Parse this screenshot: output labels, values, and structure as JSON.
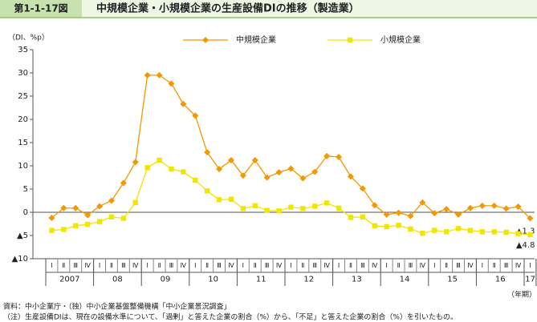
{
  "chart_data": {
    "type": "line",
    "figure_number": "第1-1-17図",
    "title": "中規模企業・小規模企業の生産設備DIの推移（製造業）",
    "y_axis_label": "（DI、%p）",
    "x_axis_label": "（年期）",
    "categories": [
      "Ⅰ",
      "Ⅱ",
      "Ⅲ",
      "Ⅳ",
      "Ⅰ",
      "Ⅱ",
      "Ⅲ",
      "Ⅳ",
      "Ⅰ",
      "Ⅱ",
      "Ⅲ",
      "Ⅳ",
      "Ⅰ",
      "Ⅱ",
      "Ⅲ",
      "Ⅳ",
      "Ⅰ",
      "Ⅱ",
      "Ⅲ",
      "Ⅳ",
      "Ⅰ",
      "Ⅱ",
      "Ⅲ",
      "Ⅳ",
      "Ⅰ",
      "Ⅱ",
      "Ⅲ",
      "Ⅳ",
      "Ⅰ",
      "Ⅱ",
      "Ⅲ",
      "Ⅳ",
      "Ⅰ",
      "Ⅱ",
      "Ⅲ",
      "Ⅳ",
      "Ⅰ",
      "Ⅱ",
      "Ⅲ",
      "Ⅳ",
      "Ⅰ"
    ],
    "groups": [
      "2007",
      "08",
      "09",
      "10",
      "11",
      "12",
      "13",
      "14",
      "15",
      "16",
      "17"
    ],
    "series": [
      {
        "name": "中規模企業",
        "color": "#f39800",
        "marker": "diamond",
        "values": [
          -1.2,
          0.9,
          0.9,
          -0.6,
          1.3,
          2.5,
          6.3,
          10.8,
          29.5,
          29.5,
          27.7,
          23.3,
          20.8,
          12.9,
          9.3,
          11.2,
          7.9,
          11.2,
          7.5,
          8.6,
          9.4,
          7.3,
          8.7,
          12.1,
          11.9,
          7.7,
          5.1,
          1.5,
          -0.5,
          -0.1,
          -0.8,
          2.1,
          -0.2,
          0.7,
          -0.5,
          0.9,
          1.4,
          1.4,
          0.8,
          1.2,
          -1.3
        ],
        "value_labels": [
          null,
          null,
          null,
          null,
          null,
          null,
          null,
          null,
          null,
          null,
          null,
          null,
          null,
          null,
          null,
          null,
          null,
          null,
          null,
          null,
          null,
          null,
          null,
          null,
          null,
          null,
          null,
          null,
          null,
          null,
          null,
          null,
          null,
          null,
          null,
          null,
          null,
          null,
          null,
          null,
          "▲1.3"
        ]
      },
      {
        "name": "小規模企業",
        "color": "#f2e600",
        "marker": "square",
        "values": [
          -3.9,
          -3.7,
          -2.9,
          -2.6,
          -2.0,
          -1.0,
          -1.3,
          2.1,
          9.6,
          11.2,
          9.3,
          8.7,
          6.9,
          4.6,
          2.7,
          2.8,
          0.8,
          1.4,
          0.4,
          0.3,
          1.1,
          0.8,
          1.3,
          2.0,
          0.9,
          -1.1,
          -1.0,
          -2.9,
          -3.1,
          -2.8,
          -3.6,
          -4.5,
          -3.9,
          -4.2,
          -3.5,
          -3.9,
          -4.2,
          -4.2,
          -4.3,
          -4.6,
          -4.8
        ],
        "value_labels": [
          null,
          null,
          null,
          null,
          null,
          null,
          null,
          null,
          null,
          null,
          null,
          null,
          null,
          null,
          null,
          null,
          null,
          null,
          null,
          null,
          null,
          null,
          null,
          null,
          null,
          null,
          null,
          null,
          null,
          null,
          null,
          null,
          null,
          null,
          null,
          null,
          null,
          null,
          null,
          null,
          "▲4.8"
        ]
      }
    ],
    "ylim": [
      -10,
      35
    ],
    "yticks": [
      {
        "value": -10,
        "label": "▲10"
      },
      {
        "value": -5,
        "label": "▲5"
      },
      0,
      5,
      10,
      15,
      20,
      25,
      30,
      35
    ],
    "grid": false,
    "legend": "top",
    "notes": [
      "資料：中小企業庁・（独）中小企業基盤整備機構「中小企業景況調査」",
      "（注）生産設備DIは、現在の設備水準について、「過剰」と答えた企業の割合（%）から、「不足」と答えた企業の割合（%）を引いたもの。"
    ]
  }
}
